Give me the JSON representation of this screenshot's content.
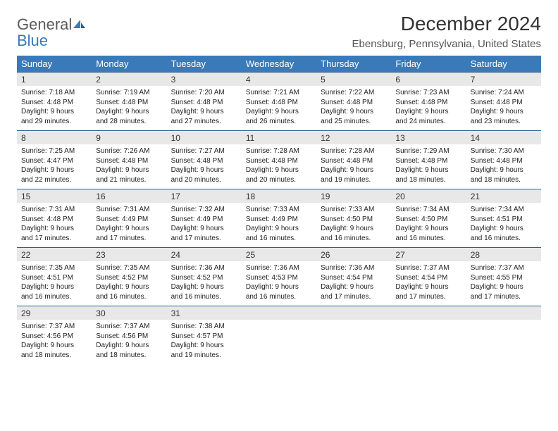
{
  "logo": {
    "text1": "General",
    "text2": "Blue"
  },
  "title": "December 2024",
  "location": "Ebensburg, Pennsylvania, United States",
  "colors": {
    "header_bg": "#3a7ab8",
    "header_text": "#ffffff",
    "daynum_bg": "#e8e8e8",
    "border": "#2b5f8f",
    "logo_gray": "#5a5a5a",
    "logo_blue": "#3a7ab8"
  },
  "day_names": [
    "Sunday",
    "Monday",
    "Tuesday",
    "Wednesday",
    "Thursday",
    "Friday",
    "Saturday"
  ],
  "weeks": [
    {
      "days": [
        {
          "n": "1",
          "sr": "7:18 AM",
          "ss": "4:48 PM",
          "dl": "9 hours and 29 minutes."
        },
        {
          "n": "2",
          "sr": "7:19 AM",
          "ss": "4:48 PM",
          "dl": "9 hours and 28 minutes."
        },
        {
          "n": "3",
          "sr": "7:20 AM",
          "ss": "4:48 PM",
          "dl": "9 hours and 27 minutes."
        },
        {
          "n": "4",
          "sr": "7:21 AM",
          "ss": "4:48 PM",
          "dl": "9 hours and 26 minutes."
        },
        {
          "n": "5",
          "sr": "7:22 AM",
          "ss": "4:48 PM",
          "dl": "9 hours and 25 minutes."
        },
        {
          "n": "6",
          "sr": "7:23 AM",
          "ss": "4:48 PM",
          "dl": "9 hours and 24 minutes."
        },
        {
          "n": "7",
          "sr": "7:24 AM",
          "ss": "4:48 PM",
          "dl": "9 hours and 23 minutes."
        }
      ]
    },
    {
      "days": [
        {
          "n": "8",
          "sr": "7:25 AM",
          "ss": "4:47 PM",
          "dl": "9 hours and 22 minutes."
        },
        {
          "n": "9",
          "sr": "7:26 AM",
          "ss": "4:48 PM",
          "dl": "9 hours and 21 minutes."
        },
        {
          "n": "10",
          "sr": "7:27 AM",
          "ss": "4:48 PM",
          "dl": "9 hours and 20 minutes."
        },
        {
          "n": "11",
          "sr": "7:28 AM",
          "ss": "4:48 PM",
          "dl": "9 hours and 20 minutes."
        },
        {
          "n": "12",
          "sr": "7:28 AM",
          "ss": "4:48 PM",
          "dl": "9 hours and 19 minutes."
        },
        {
          "n": "13",
          "sr": "7:29 AM",
          "ss": "4:48 PM",
          "dl": "9 hours and 18 minutes."
        },
        {
          "n": "14",
          "sr": "7:30 AM",
          "ss": "4:48 PM",
          "dl": "9 hours and 18 minutes."
        }
      ]
    },
    {
      "days": [
        {
          "n": "15",
          "sr": "7:31 AM",
          "ss": "4:48 PM",
          "dl": "9 hours and 17 minutes."
        },
        {
          "n": "16",
          "sr": "7:31 AM",
          "ss": "4:49 PM",
          "dl": "9 hours and 17 minutes."
        },
        {
          "n": "17",
          "sr": "7:32 AM",
          "ss": "4:49 PM",
          "dl": "9 hours and 17 minutes."
        },
        {
          "n": "18",
          "sr": "7:33 AM",
          "ss": "4:49 PM",
          "dl": "9 hours and 16 minutes."
        },
        {
          "n": "19",
          "sr": "7:33 AM",
          "ss": "4:50 PM",
          "dl": "9 hours and 16 minutes."
        },
        {
          "n": "20",
          "sr": "7:34 AM",
          "ss": "4:50 PM",
          "dl": "9 hours and 16 minutes."
        },
        {
          "n": "21",
          "sr": "7:34 AM",
          "ss": "4:51 PM",
          "dl": "9 hours and 16 minutes."
        }
      ]
    },
    {
      "days": [
        {
          "n": "22",
          "sr": "7:35 AM",
          "ss": "4:51 PM",
          "dl": "9 hours and 16 minutes."
        },
        {
          "n": "23",
          "sr": "7:35 AM",
          "ss": "4:52 PM",
          "dl": "9 hours and 16 minutes."
        },
        {
          "n": "24",
          "sr": "7:36 AM",
          "ss": "4:52 PM",
          "dl": "9 hours and 16 minutes."
        },
        {
          "n": "25",
          "sr": "7:36 AM",
          "ss": "4:53 PM",
          "dl": "9 hours and 16 minutes."
        },
        {
          "n": "26",
          "sr": "7:36 AM",
          "ss": "4:54 PM",
          "dl": "9 hours and 17 minutes."
        },
        {
          "n": "27",
          "sr": "7:37 AM",
          "ss": "4:54 PM",
          "dl": "9 hours and 17 minutes."
        },
        {
          "n": "28",
          "sr": "7:37 AM",
          "ss": "4:55 PM",
          "dl": "9 hours and 17 minutes."
        }
      ]
    },
    {
      "days": [
        {
          "n": "29",
          "sr": "7:37 AM",
          "ss": "4:56 PM",
          "dl": "9 hours and 18 minutes."
        },
        {
          "n": "30",
          "sr": "7:37 AM",
          "ss": "4:56 PM",
          "dl": "9 hours and 18 minutes."
        },
        {
          "n": "31",
          "sr": "7:38 AM",
          "ss": "4:57 PM",
          "dl": "9 hours and 19 minutes."
        },
        null,
        null,
        null,
        null
      ]
    }
  ],
  "labels": {
    "sunrise": "Sunrise:",
    "sunset": "Sunset:",
    "daylight": "Daylight:"
  }
}
